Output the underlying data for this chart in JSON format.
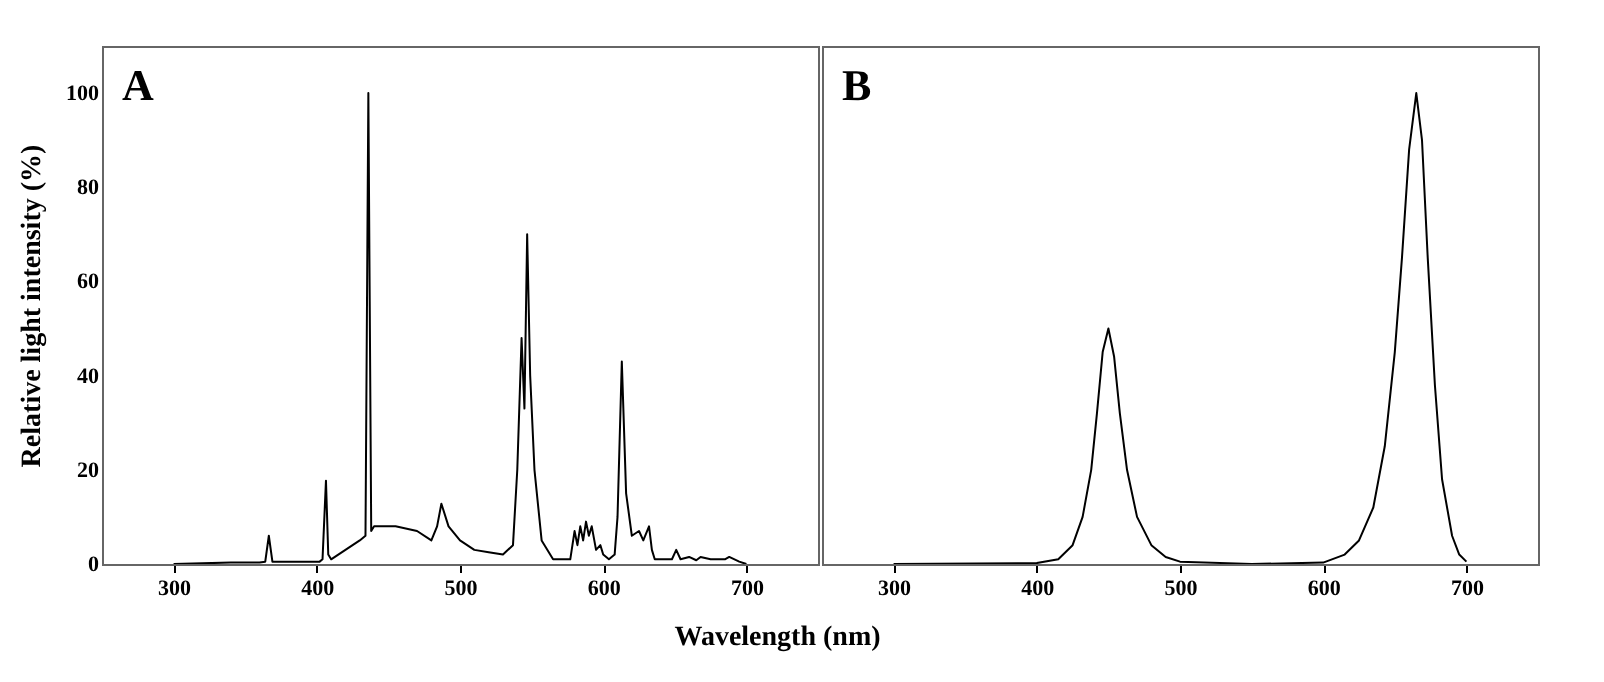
{
  "chart_data": [
    {
      "type": "line",
      "ylabel": "Relative light intensity (%)",
      "xlabel": "Wavelength (nm)",
      "annotations": [
        "A"
      ],
      "xlim": [
        250,
        750
      ],
      "ylim": [
        0,
        110
      ],
      "xticks": [
        300,
        400,
        500,
        600,
        700
      ],
      "yticks": [
        0,
        20,
        40,
        60,
        80,
        100
      ],
      "grid": false,
      "series": [
        {
          "color": "#000000",
          "x": [
            300,
            340,
            360,
            364,
            366.5,
            369,
            380,
            390,
            402,
            404,
            406.4,
            408,
            410,
            420,
            430,
            434,
            436,
            438,
            440,
            455,
            470,
            480,
            484,
            487,
            492,
            500,
            510,
            520,
            530,
            537,
            540,
            543,
            545,
            546.9,
            549,
            552,
            557,
            565,
            577,
            580,
            582,
            584,
            586,
            588,
            590,
            592,
            595,
            598,
            600,
            604,
            608,
            610,
            613,
            616,
            620,
            625,
            628,
            632,
            634,
            636,
            648,
            651,
            654,
            660,
            665,
            668,
            675,
            685,
            688,
            695,
            700
          ],
          "values": [
            0,
            0.3,
            0.3,
            0.5,
            6,
            0.5,
            0.5,
            0.5,
            0.5,
            1,
            17.7,
            2,
            1,
            3,
            5,
            6,
            100,
            7,
            8,
            8,
            7,
            5,
            8,
            12.8,
            8,
            5,
            3,
            2.5,
            2,
            4,
            20,
            48,
            33,
            70,
            40,
            20,
            5,
            1,
            1,
            7,
            4,
            8,
            5,
            9,
            6,
            8,
            3,
            4,
            2,
            1,
            2,
            10,
            43,
            15,
            6,
            7,
            5,
            8,
            3,
            1,
            1,
            3,
            1,
            1.5,
            0.8,
            1.5,
            1,
            1,
            1.5,
            0.5,
            0
          ]
        }
      ]
    },
    {
      "type": "line",
      "annotations": [
        "B"
      ],
      "xlim": [
        250,
        750
      ],
      "ylim": [
        0,
        110
      ],
      "xticks": [
        300,
        400,
        500,
        600,
        700
      ],
      "tick_labels": "x",
      "grid": false,
      "series": [
        {
          "color": "#000000",
          "x": [
            300,
            400,
            415,
            425,
            432,
            438,
            442,
            446,
            450,
            454,
            458,
            463,
            470,
            480,
            490,
            500,
            550,
            600,
            615,
            625,
            635,
            643,
            650,
            655,
            660,
            665,
            669,
            673,
            678,
            683,
            690,
            695,
            700
          ],
          "values": [
            0,
            0.2,
            1,
            4,
            10,
            20,
            32,
            45,
            50,
            44,
            32,
            20,
            10,
            4,
            1.5,
            0.5,
            0,
            0.3,
            2,
            5,
            12,
            25,
            45,
            65,
            88,
            100,
            90,
            65,
            38,
            18,
            6,
            2,
            0.5
          ]
        }
      ]
    }
  ]
}
